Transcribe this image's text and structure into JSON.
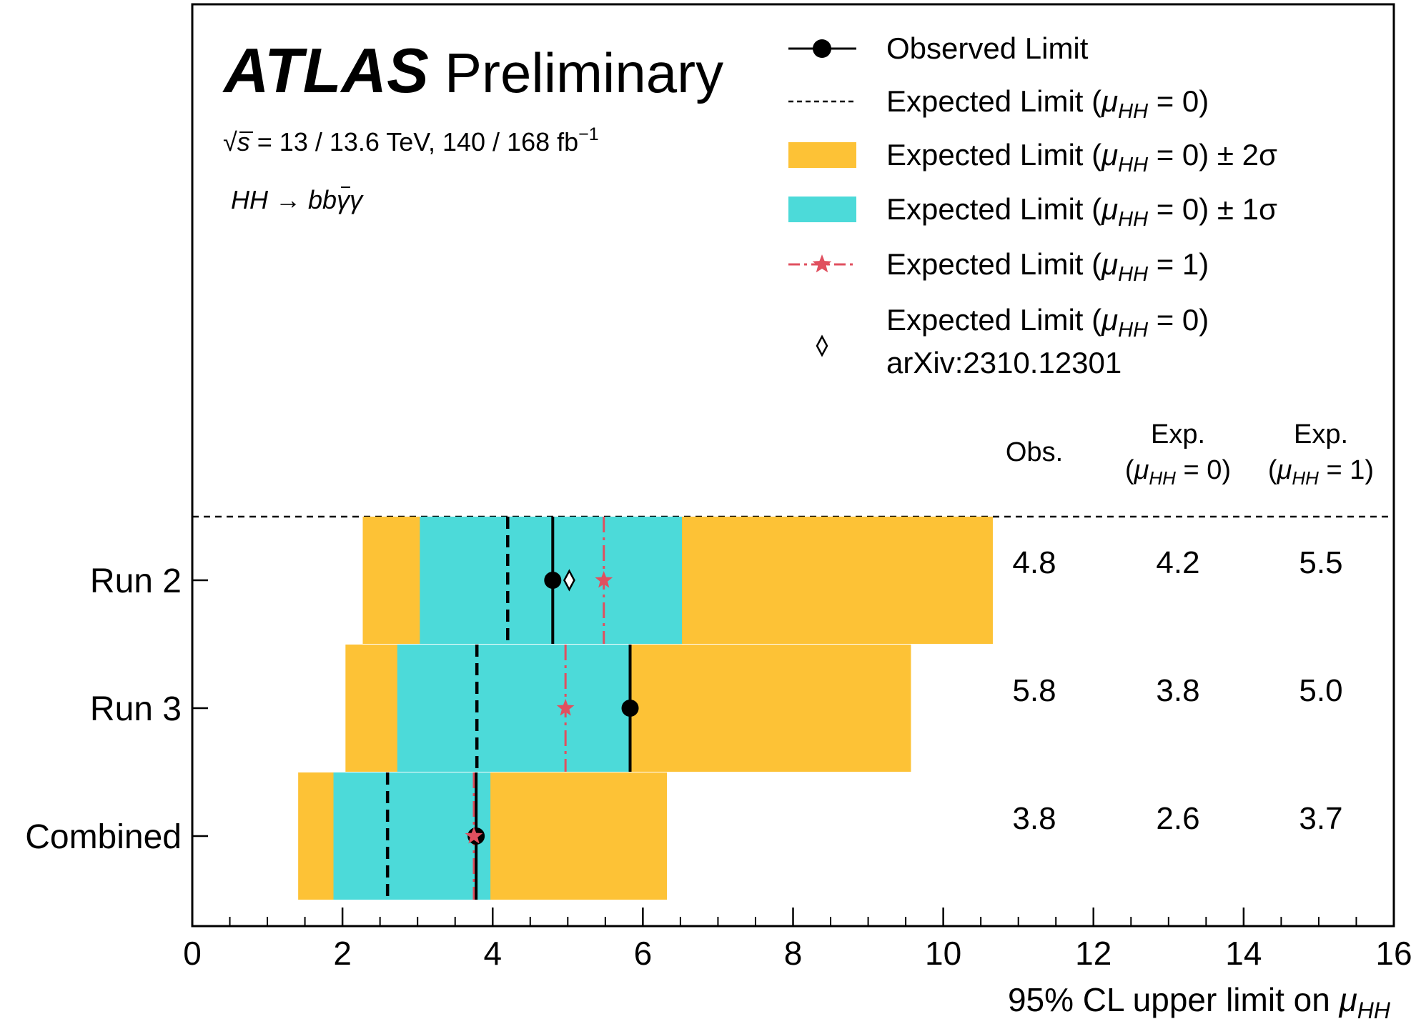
{
  "chart_data": {
    "type": "limit_plot",
    "experiment": "ATLAS",
    "label": "Preliminary",
    "energy_label": {
      "sqrt": "√",
      "s": "s",
      "rest": " = 13 / 13.6 TeV, 140 / 168 fb",
      "sup": "−1"
    },
    "process_label": {
      "hh": "HH",
      "arrow": " → ",
      "b1": "b",
      "b2": "b",
      "gg": "γγ"
    },
    "xlabel": {
      "pre": "95% CL upper limit on ",
      "mu": "μ",
      "sub": "HH"
    },
    "xlim": [
      0,
      16
    ],
    "xticks": [
      "0",
      "2",
      "4",
      "6",
      "8",
      "10",
      "12",
      "14",
      "16"
    ],
    "categories": [
      "Run 2",
      "Run 3",
      "Combined"
    ],
    "observed": [
      4.8,
      5.8,
      3.8
    ],
    "observed_points": [
      4.8,
      5.83,
      3.78
    ],
    "expected_mu0": [
      4.2,
      3.8,
      2.6
    ],
    "expected_mu0_lines": [
      4.2,
      3.79,
      2.6
    ],
    "band_1sigma": [
      [
        3.03,
        6.52
      ],
      [
        2.73,
        5.84
      ],
      [
        1.88,
        3.97
      ]
    ],
    "band_2sigma": [
      [
        2.27,
        10.66
      ],
      [
        2.04,
        9.57
      ],
      [
        1.41,
        6.32
      ]
    ],
    "expected_mu1": [
      5.5,
      5.0,
      3.7
    ],
    "expected_mu1_lines": [
      5.48,
      4.97,
      3.75
    ],
    "previous_expected": [
      5.02,
      null,
      null
    ],
    "colors": {
      "band_2sigma": "#fdc236",
      "band_1sigma": "#4cdad9",
      "expected_mu1": "#e0505f",
      "observed": "#000000"
    },
    "table": {
      "headers": [
        {
          "line1": "",
          "line2": "Obs.",
          "mu": "",
          "sub": "",
          "val": ""
        },
        {
          "line1": "Exp.",
          "line2": "",
          "mu": "μ",
          "sub": "HH",
          "val": " = 0)"
        },
        {
          "line1": "Exp.",
          "line2": "",
          "mu": "μ",
          "sub": "HH",
          "val": " = 1)"
        }
      ],
      "rows": [
        [
          "4.8",
          "4.2",
          "5.5"
        ],
        [
          "5.8",
          "3.8",
          "5.0"
        ],
        [
          "3.8",
          "2.6",
          "3.7"
        ]
      ]
    },
    "legend": {
      "position": "top-right",
      "entries": [
        {
          "key": "observed",
          "pre": "Observed Limit",
          "mu": "",
          "sub": "",
          "post": "",
          "line2": ""
        },
        {
          "key": "expected_mu0",
          "pre": "Expected Limit (",
          "mu": "μ",
          "sub": "HH",
          "post": " = 0)",
          "line2": ""
        },
        {
          "key": "band_2sigma",
          "pre": "Expected Limit (",
          "mu": "μ",
          "sub": "HH",
          "post": " = 0) ± 2σ",
          "line2": ""
        },
        {
          "key": "band_1sigma",
          "pre": "Expected Limit (",
          "mu": "μ",
          "sub": "HH",
          "post": " = 0) ± 1σ",
          "line2": ""
        },
        {
          "key": "expected_mu1",
          "pre": "Expected Limit (",
          "mu": "μ",
          "sub": "HH",
          "post": " = 1)",
          "line2": ""
        },
        {
          "key": "previous_expected",
          "pre": "Expected Limit (",
          "mu": "μ",
          "sub": "HH",
          "post": " = 0)",
          "line2": "arXiv:2310.12301"
        }
      ]
    }
  }
}
